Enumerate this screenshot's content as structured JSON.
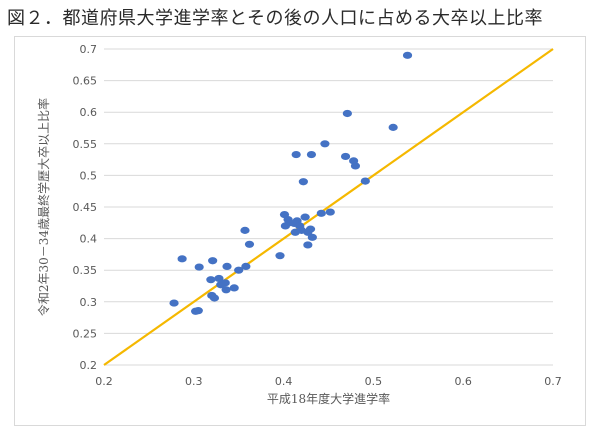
{
  "title": "図２．都道府県大学進学率とその後の人口に占める大卒以上比率",
  "chart_data": {
    "type": "scatter",
    "xlabel": "平成18年度大学進学率",
    "ylabel": "令和2年30－34歳最終学歴大卒以上比率",
    "xlim": [
      0.2,
      0.7
    ],
    "ylim": [
      0.2,
      0.7
    ],
    "xticks": [
      "0.2",
      "0.3",
      "0.4",
      "0.5",
      "0.6",
      "0.7"
    ],
    "yticks": [
      "0.2",
      "0.25",
      "0.3",
      "0.35",
      "0.4",
      "0.45",
      "0.5",
      "0.55",
      "0.6",
      "0.65",
      "0.7"
    ],
    "grid": "horizontal",
    "reference_line": {
      "x": [
        0.2,
        0.7
      ],
      "y": [
        0.2,
        0.7
      ],
      "color": "#f5b800"
    },
    "point_color": "#4472c4",
    "points": [
      [
        0.538,
        0.69
      ],
      [
        0.522,
        0.576
      ],
      [
        0.471,
        0.598
      ],
      [
        0.446,
        0.55
      ],
      [
        0.469,
        0.53
      ],
      [
        0.478,
        0.523
      ],
      [
        0.48,
        0.515
      ],
      [
        0.414,
        0.533
      ],
      [
        0.431,
        0.533
      ],
      [
        0.491,
        0.491
      ],
      [
        0.422,
        0.49
      ],
      [
        0.452,
        0.442
      ],
      [
        0.442,
        0.44
      ],
      [
        0.401,
        0.438
      ],
      [
        0.405,
        0.43
      ],
      [
        0.424,
        0.434
      ],
      [
        0.415,
        0.428
      ],
      [
        0.406,
        0.425
      ],
      [
        0.412,
        0.424
      ],
      [
        0.418,
        0.42
      ],
      [
        0.402,
        0.42
      ],
      [
        0.42,
        0.413
      ],
      [
        0.413,
        0.41
      ],
      [
        0.43,
        0.415
      ],
      [
        0.427,
        0.41
      ],
      [
        0.432,
        0.402
      ],
      [
        0.427,
        0.39
      ],
      [
        0.357,
        0.413
      ],
      [
        0.362,
        0.391
      ],
      [
        0.396,
        0.373
      ],
      [
        0.287,
        0.368
      ],
      [
        0.321,
        0.365
      ],
      [
        0.306,
        0.355
      ],
      [
        0.337,
        0.356
      ],
      [
        0.358,
        0.356
      ],
      [
        0.35,
        0.35
      ],
      [
        0.328,
        0.337
      ],
      [
        0.319,
        0.335
      ],
      [
        0.335,
        0.33
      ],
      [
        0.33,
        0.327
      ],
      [
        0.345,
        0.322
      ],
      [
        0.336,
        0.319
      ],
      [
        0.32,
        0.31
      ],
      [
        0.323,
        0.306
      ],
      [
        0.278,
        0.298
      ],
      [
        0.305,
        0.286
      ],
      [
        0.302,
        0.285
      ]
    ]
  }
}
